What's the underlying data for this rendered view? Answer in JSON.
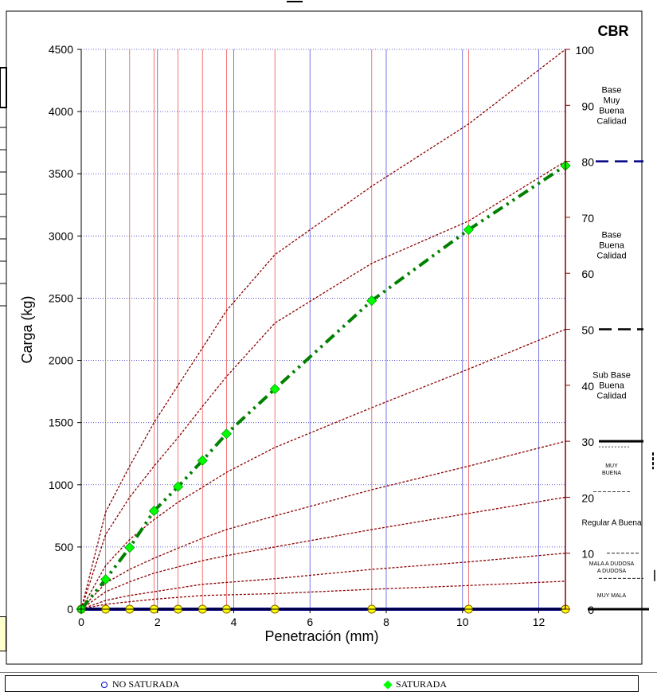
{
  "chart_data": {
    "type": "line",
    "title": "",
    "xlabel": "Penetración (mm)",
    "ylabel": "Carga   (kg)",
    "y2label": "CBR",
    "xlim": [
      0,
      12.7
    ],
    "ylim": [
      0,
      4500
    ],
    "y2lim": [
      0,
      100
    ],
    "x_ticks": [
      0,
      2,
      4,
      6,
      8,
      10,
      12
    ],
    "y_ticks": [
      0,
      500,
      1000,
      1500,
      2000,
      2500,
      3000,
      3500,
      4000,
      4500
    ],
    "y2_ticks": [
      0,
      10,
      20,
      30,
      40,
      50,
      60,
      70,
      80,
      90,
      100
    ],
    "red_gridlines_x": [
      0.64,
      1.27,
      1.91,
      2.54,
      3.18,
      3.81,
      5.08,
      7.62,
      10.16,
      12.7
    ],
    "blue_gridlines_x": [
      2,
      4,
      6,
      8,
      10,
      12
    ],
    "series": [
      {
        "name": "NO SATURADA",
        "marker": "circle",
        "color": "#000080",
        "marker_color": "#ffff00",
        "x": [
          0,
          0.64,
          1.27,
          1.91,
          2.54,
          3.18,
          3.81,
          5.08,
          7.62,
          10.16,
          12.7
        ],
        "y": [
          0,
          0,
          0,
          0,
          0,
          0,
          0,
          0,
          0,
          0,
          0
        ]
      },
      {
        "name": "SATURADA",
        "marker": "diamond",
        "color": "#008000",
        "marker_color": "#00ff00",
        "x": [
          0,
          0.64,
          1.27,
          1.91,
          2.54,
          3.18,
          3.81,
          5.08,
          7.62,
          10.16,
          12.7
        ],
        "y": [
          0,
          240,
          495,
          790,
          985,
          1195,
          1410,
          1770,
          2480,
          3050,
          3565
        ]
      }
    ],
    "reference_curves": [
      {
        "cbr": 100,
        "y": [
          0,
          780,
          1150,
          1500,
          1800,
          2100,
          2400,
          2850,
          3400,
          3900,
          4500
        ]
      },
      {
        "cbr": 80,
        "y": [
          0,
          600,
          900,
          1150,
          1380,
          1630,
          1870,
          2300,
          2780,
          3120,
          3600
        ]
      },
      {
        "cbr": 50,
        "y": [
          0,
          350,
          560,
          720,
          860,
          980,
          1100,
          1300,
          1620,
          1930,
          2250
        ]
      },
      {
        "cbr": 30,
        "y": [
          0,
          210,
          320,
          410,
          490,
          570,
          640,
          750,
          960,
          1150,
          1350
        ]
      },
      {
        "cbr": 20,
        "y": [
          0,
          140,
          220,
          290,
          340,
          390,
          430,
          500,
          640,
          770,
          900
        ]
      },
      {
        "cbr": 10,
        "y": [
          0,
          70,
          110,
          140,
          170,
          200,
          215,
          245,
          320,
          380,
          450
        ]
      },
      {
        "cbr": 5,
        "y": [
          0,
          40,
          60,
          80,
          95,
          110,
          115,
          125,
          160,
          190,
          225
        ]
      }
    ],
    "cbr_categories": [
      {
        "label_lines": [
          "Base",
          "Muy",
          "Buena",
          "Calidad"
        ],
        "cbr_top": 100,
        "cbr_bottom": 80
      },
      {
        "label_lines": [
          "Base",
          "Buena",
          "Calidad"
        ],
        "cbr_top": 80,
        "cbr_bottom": 50
      },
      {
        "label_lines": [
          "Sub Base",
          "Buena",
          "Calidad"
        ],
        "cbr_top": 50,
        "cbr_bottom": 30
      },
      {
        "label_lines": [
          "MUY",
          "BUENA"
        ],
        "cbr_top": 29,
        "cbr_bottom": 21
      },
      {
        "label_lines": [
          "Regular A  Buena"
        ],
        "cbr_top": 21,
        "cbr_bottom": 10
      },
      {
        "label_lines": [
          "MALA  A DUDOSA",
          "A DUDOSA"
        ],
        "cbr_top": 10,
        "cbr_bottom": 5
      },
      {
        "label_lines": [
          "MUY MALA"
        ],
        "cbr_top": 5,
        "cbr_bottom": 0
      }
    ],
    "grid": true,
    "legend_position": "bottom"
  },
  "legend": {
    "no_saturada": "NO SATURADA",
    "saturada": "SATURADA"
  }
}
